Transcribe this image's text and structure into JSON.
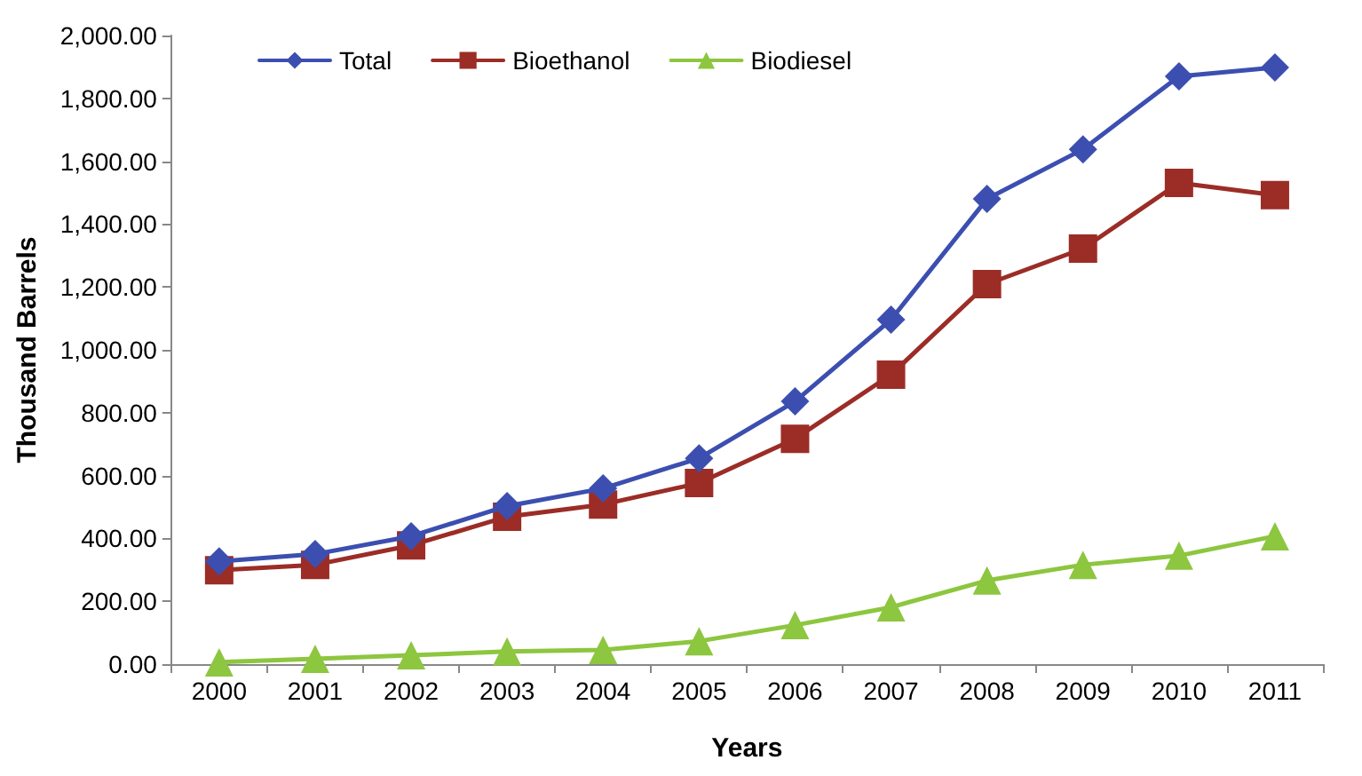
{
  "chart_data": {
    "type": "line",
    "xlabel": "Years",
    "ylabel": "Thousand Barrels",
    "categories": [
      "2000",
      "2001",
      "2002",
      "2003",
      "2004",
      "2005",
      "2006",
      "2007",
      "2008",
      "2009",
      "2010",
      "2011"
    ],
    "series": [
      {
        "name": "Total",
        "color": "#3c4fb0",
        "marker": "diamond",
        "values": [
          327,
          350,
          407,
          503,
          559,
          655,
          836,
          1096,
          1480,
          1638,
          1870,
          1898
        ]
      },
      {
        "name": "Bioethanol",
        "color": "#9b2d26",
        "marker": "square",
        "values": [
          299,
          316,
          378,
          469,
          508,
          576,
          717,
          921,
          1209,
          1322,
          1531,
          1492
        ]
      },
      {
        "name": "Biodiesel",
        "color": "#8dc63f",
        "marker": "triangle",
        "values": [
          6,
          17,
          28,
          40,
          45,
          73,
          124,
          181,
          266,
          316,
          345,
          407
        ]
      }
    ],
    "ylim": [
      0,
      2000
    ],
    "yticks": [
      {
        "value": 0,
        "label": "0.00"
      },
      {
        "value": 200,
        "label": "200.00"
      },
      {
        "value": 400,
        "label": "400.00"
      },
      {
        "value": 600,
        "label": "600.00"
      },
      {
        "value": 800,
        "label": "800.00"
      },
      {
        "value": 1000,
        "label": "1,000.00"
      },
      {
        "value": 1200,
        "label": "1,200.00"
      },
      {
        "value": 1400,
        "label": "1,400.00"
      },
      {
        "value": 1600,
        "label": "1,600.00"
      },
      {
        "value": 1800,
        "label": "1,800.00"
      },
      {
        "value": 2000,
        "label": "2,000.00"
      }
    ],
    "grid": false,
    "legend": "top left",
    "line_style": "solid"
  }
}
